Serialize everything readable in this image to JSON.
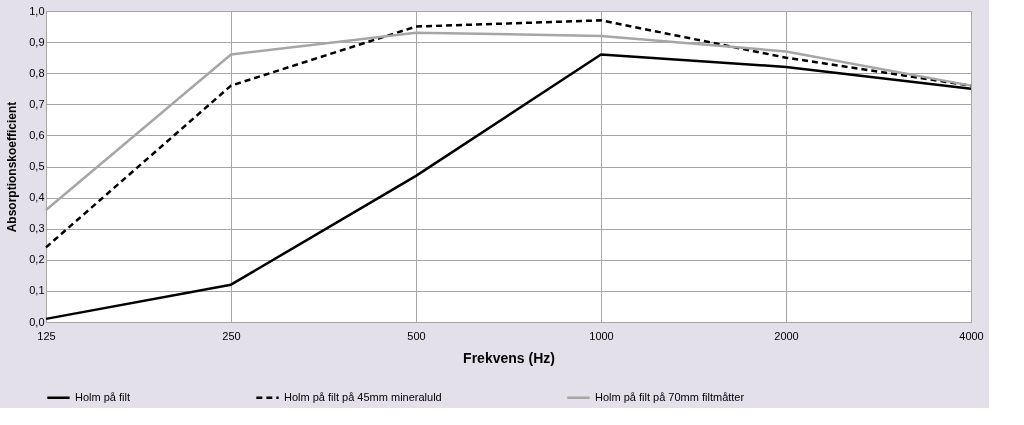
{
  "chart_data": {
    "type": "line",
    "xlabel": "Frekvens (Hz)",
    "ylabel": "Absorptionskoefficient",
    "categories": [
      "125",
      "250",
      "500",
      "1000",
      "2000",
      "4000"
    ],
    "series": [
      {
        "name": "Holm på filt",
        "color": "#000000",
        "line_style": "solid",
        "values": [
          0.01,
          0.12,
          0.47,
          0.86,
          0.82,
          0.75
        ]
      },
      {
        "name": "Holm på filt på 45mm mineraluld",
        "color": "#000000",
        "line_style": "dashed",
        "values": [
          0.24,
          0.76,
          0.95,
          0.97,
          0.85,
          0.76
        ]
      },
      {
        "name": "Holm på filt på 70mm filtmåtter",
        "color": "#a6a6a6",
        "line_style": "solid",
        "values": [
          0.36,
          0.86,
          0.93,
          0.92,
          0.87,
          0.76
        ]
      }
    ],
    "ylim": [
      0,
      1
    ],
    "yticks": [
      {
        "value": 0,
        "label": "0,0"
      },
      {
        "value": 0.1,
        "label": "0,1"
      },
      {
        "value": 0.2,
        "label": "0,2"
      },
      {
        "value": 0.3,
        "label": "0,3"
      },
      {
        "value": 0.4,
        "label": "0,4"
      },
      {
        "value": 0.5,
        "label": "0,5"
      },
      {
        "value": 0.6,
        "label": "0,6"
      },
      {
        "value": 0.7,
        "label": "0,7"
      },
      {
        "value": 0.8,
        "label": "0,8"
      },
      {
        "value": 0.9,
        "label": "0,9"
      },
      {
        "value": 1,
        "label": "1,0"
      }
    ],
    "grid": true,
    "legend": "bottom",
    "marker": "none"
  }
}
